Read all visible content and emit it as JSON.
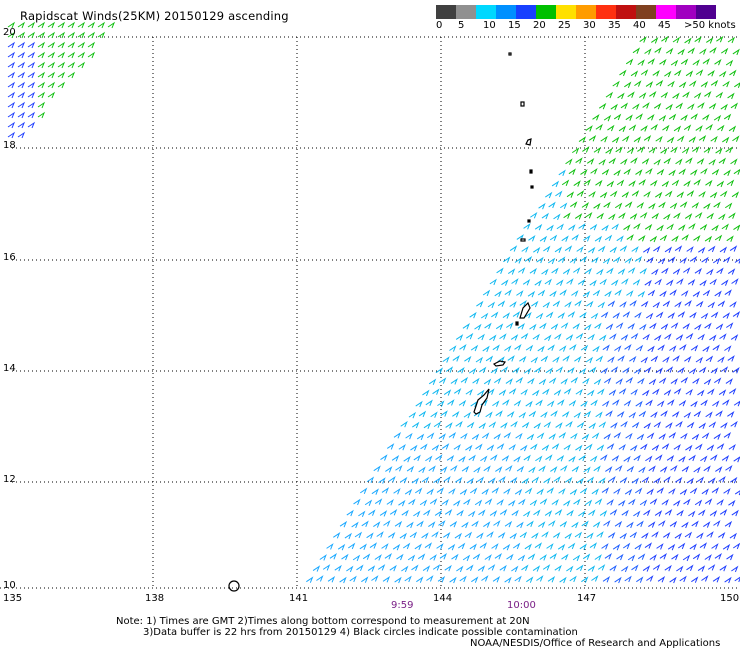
{
  "title": "Rapidscat Winds(25KM) 20150129 ascending",
  "colorbar": {
    "colors": [
      "#404040",
      "#909090",
      "#00d8ff",
      "#0090ff",
      "#1840ff",
      "#00c000",
      "#ffe000",
      "#ff9c00",
      "#ff3010",
      "#c01010",
      "#804020",
      "#ff00ff",
      "#a000c0",
      "#500090"
    ],
    "labels": [
      "0",
      "5",
      "10",
      "15",
      "20",
      "25",
      "30",
      "35",
      "40",
      "45",
      ">50 knots"
    ]
  },
  "axes": {
    "lat_labels": [
      "20",
      "18",
      "16",
      "14",
      "12",
      "10"
    ],
    "lon_labels": [
      "135",
      "138",
      "141",
      "144",
      "147",
      "150"
    ]
  },
  "pass_times": [
    "9:59",
    "10:00"
  ],
  "notes": {
    "line1": "Note: 1) Times are GMT 2)Times along bottom correspond to measurement at 20N",
    "line2": "3)Data buffer is 22 hrs from 20150129 4) Black circles indicate possible contamination",
    "line3": "NOAA/NESDIS/Office of Research and Applications"
  }
}
